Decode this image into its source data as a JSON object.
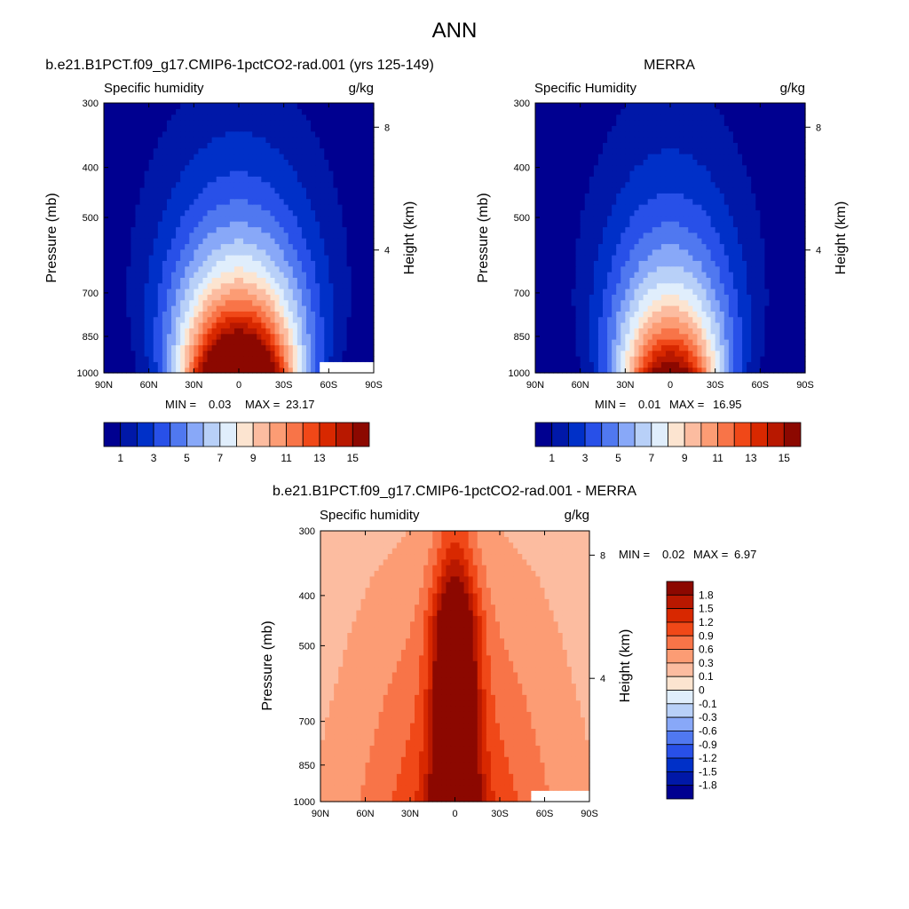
{
  "title": "ANN",
  "colors": {
    "abs_levels": [
      "#000090",
      "#0018a8",
      "#0030c8",
      "#2850e8",
      "#5078f0",
      "#88a8f8",
      "#b8d0f8",
      "#e0eefc",
      "#fce4d0",
      "#fcbca0",
      "#fc9c74",
      "#f87448",
      "#f04818",
      "#d82800",
      "#b81800",
      "#8c0800"
    ],
    "diff_levels": [
      "#000090",
      "#0018a8",
      "#0030c8",
      "#2850e8",
      "#5078f0",
      "#88a8f8",
      "#b8d0f8",
      "#e0eefc",
      "#fce4d0",
      "#fcbca0",
      "#fc9c74",
      "#f87448",
      "#f04818",
      "#d82800",
      "#b81800",
      "#8c0800"
    ],
    "missing": "#ffffff"
  },
  "chart_data": [
    {
      "type": "heatmap",
      "id": "model",
      "title": "b.e21.B1PCT.f09_g17.CMIP6-1pctCO2-rad.001 (yrs 125-149)",
      "left_label": "Specific humidity",
      "units": "g/kg",
      "ylabel": "Pressure (mb)",
      "y2label": "Height (km)",
      "x_ticks": [
        "90N",
        "60N",
        "30N",
        "0",
        "30S",
        "60S",
        "90S"
      ],
      "y_ticks": [
        "300",
        "400",
        "500",
        "700",
        "850",
        "1000"
      ],
      "y_tick_values": [
        300,
        400,
        500,
        700,
        850,
        1000
      ],
      "y2_ticks": [
        "8",
        "4"
      ],
      "ylim": [
        1000,
        300
      ],
      "xlim": [
        90,
        -90
      ],
      "stats": {
        "min_label": "MIN =",
        "min": "0.03",
        "max_label": "MAX =",
        "max": "23.17"
      },
      "levels": [
        1,
        2,
        3,
        4,
        5,
        6,
        7,
        8,
        9,
        10,
        11,
        12,
        13,
        14,
        15
      ],
      "colorbar_labels": [
        "1",
        "3",
        "5",
        "7",
        "9",
        "11",
        "13",
        "15"
      ],
      "field": {
        "peak": 23.17,
        "decay": 3.2,
        "width": 27,
        "width_slope": 0.9,
        "min": 0.03,
        "missing_south_pressure": [
          955,
          1000
        ],
        "missing_south_lat": -54
      }
    },
    {
      "type": "heatmap",
      "id": "obs",
      "title": "MERRA",
      "left_label": "Specific Humidity",
      "units": "g/kg",
      "ylabel": "Pressure (mb)",
      "y2label": "Height (km)",
      "x_ticks": [
        "90N",
        "60N",
        "30N",
        "0",
        "30S",
        "60S",
        "90S"
      ],
      "y_ticks": [
        "300",
        "400",
        "500",
        "700",
        "850",
        "1000"
      ],
      "y_tick_values": [
        300,
        400,
        500,
        700,
        850,
        1000
      ],
      "y2_ticks": [
        "8",
        "4"
      ],
      "ylim": [
        1000,
        300
      ],
      "xlim": [
        90,
        -90
      ],
      "stats": {
        "min_label": "MIN =",
        "min": "0.01",
        "max_label": "MAX =",
        "max": "16.95"
      },
      "levels": [
        1,
        2,
        3,
        4,
        5,
        6,
        7,
        8,
        9,
        10,
        11,
        12,
        13,
        14,
        15
      ],
      "colorbar_labels": [
        "1",
        "3",
        "5",
        "7",
        "9",
        "11",
        "13",
        "15"
      ],
      "field": {
        "peak": 16.95,
        "decay": 3.4,
        "width": 25,
        "width_slope": 0.9,
        "min": 0.01,
        "missing_south_pressure": null,
        "missing_south_lat": null
      }
    },
    {
      "type": "heatmap",
      "id": "diff",
      "title": "b.e21.B1PCT.f09_g17.CMIP6-1pctCO2-rad.001 - MERRA",
      "left_label": "Specific humidity",
      "units": "g/kg",
      "ylabel": "Pressure (mb)",
      "y2label": "Height (km)",
      "x_ticks": [
        "90N",
        "60N",
        "30N",
        "0",
        "30S",
        "60S",
        "90S"
      ],
      "y_ticks": [
        "300",
        "400",
        "500",
        "700",
        "850",
        "1000"
      ],
      "y_tick_values": [
        300,
        400,
        500,
        700,
        850,
        1000
      ],
      "y2_ticks": [
        "8",
        "4"
      ],
      "ylim": [
        1000,
        300
      ],
      "xlim": [
        90,
        -90
      ],
      "stats": {
        "min_label": "MIN =",
        "min": "0.02",
        "max_label": "MAX =",
        "max": "6.97"
      },
      "levels": [
        -1.8,
        -1.5,
        -1.2,
        -0.9,
        -0.6,
        -0.3,
        -0.1,
        0,
        0.1,
        0.3,
        0.6,
        0.9,
        1.2,
        1.5,
        1.8
      ],
      "colorbar_labels": [
        "1.8",
        "1.5",
        "1.2",
        "0.9",
        "0.6",
        "0.3",
        "0.1",
        "0",
        "-0.1",
        "-0.3",
        "-0.6",
        "-0.9",
        "-1.2",
        "-1.5",
        "-1.8"
      ],
      "field": {
        "peak": 6.97,
        "min": 0.02,
        "missing_south_pressure": [
          955,
          1000
        ],
        "missing_south_lat": -52
      }
    }
  ]
}
